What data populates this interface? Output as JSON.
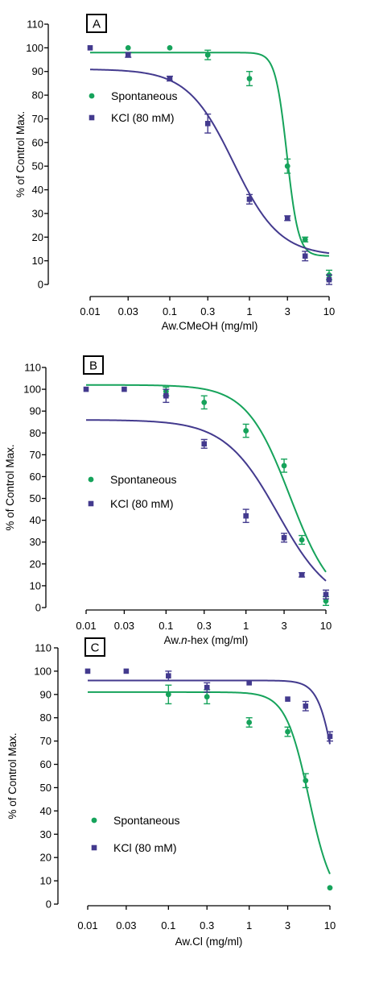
{
  "colors": {
    "spontaneous": "#16a35b",
    "kcl": "#433a8e",
    "axis": "#000000"
  },
  "chart_data": [
    {
      "type": "scatter",
      "panel_label": "A",
      "xlabel": "Aw.CMeOH (mg/ml)",
      "ylabel": "% of Control Max.",
      "xscale": "log",
      "xlim": [
        0.01,
        10
      ],
      "ylim": [
        0,
        110
      ],
      "x_ticks": [
        0.01,
        0.03,
        0.1,
        0.3,
        1,
        3,
        10
      ],
      "x_tick_labels": [
        "0.01",
        "0.03",
        "0.1",
        "0.3",
        "1",
        "3",
        "10"
      ],
      "y_ticks": [
        0,
        10,
        20,
        30,
        40,
        50,
        60,
        70,
        80,
        90,
        100,
        110
      ],
      "y_tick_labels": [
        "0",
        "10",
        "20",
        "30",
        "40",
        "50",
        "60",
        "70",
        "80",
        "90",
        "100",
        "110"
      ],
      "legend_position": "center-left",
      "series": [
        {
          "name": "Spontaneous",
          "marker": "circle",
          "color_key": "spontaneous",
          "points": [
            {
              "x": 0.03,
              "y": 100,
              "err": 0
            },
            {
              "x": 0.1,
              "y": 100,
              "err": 0
            },
            {
              "x": 0.3,
              "y": 97,
              "err": 2
            },
            {
              "x": 1,
              "y": 87,
              "err": 3
            },
            {
              "x": 3,
              "y": 50,
              "err": 3
            },
            {
              "x": 5,
              "y": 19,
              "err": 1
            },
            {
              "x": 10,
              "y": 4,
              "err": 2
            }
          ],
          "fit": {
            "top": 98,
            "bottom": 12,
            "log_ec50": 0.47,
            "hill": 6
          }
        },
        {
          "name": "KCl (80 mM)",
          "marker": "square",
          "color_key": "kcl",
          "points": [
            {
              "x": 0.01,
              "y": 100,
              "err": 0
            },
            {
              "x": 0.03,
              "y": 97,
              "err": 1
            },
            {
              "x": 0.1,
              "y": 87,
              "err": 1
            },
            {
              "x": 0.3,
              "y": 68,
              "err": 4
            },
            {
              "x": 1,
              "y": 36,
              "err": 2
            },
            {
              "x": 3,
              "y": 28,
              "err": 1
            },
            {
              "x": 5,
              "y": 12,
              "err": 2
            },
            {
              "x": 10,
              "y": 2,
              "err": 2
            }
          ],
          "fit": {
            "top": 91,
            "bottom": 12,
            "log_ec50": -0.2,
            "hill": 1.5
          }
        }
      ]
    },
    {
      "type": "scatter",
      "panel_label": "B",
      "xlabel_prefix": "Aw.",
      "xlabel_italic": "n",
      "xlabel_suffix": "-hex (mg/ml)",
      "ylabel": "% of Control Max.",
      "xscale": "log",
      "xlim": [
        0.01,
        10
      ],
      "ylim": [
        0,
        110
      ],
      "x_ticks": [
        0.01,
        0.03,
        0.1,
        0.3,
        1,
        3,
        10
      ],
      "x_tick_labels": [
        "0.01",
        "0.03",
        "0.1",
        "0.3",
        "1",
        "3",
        "10"
      ],
      "y_ticks": [
        0,
        10,
        20,
        30,
        40,
        50,
        60,
        70,
        80,
        90,
        100,
        110
      ],
      "y_tick_labels": [
        "0",
        "10",
        "20",
        "30",
        "40",
        "50",
        "60",
        "70",
        "80",
        "90",
        "100",
        "110"
      ],
      "legend_position": "center-left",
      "series": [
        {
          "name": "Spontaneous",
          "marker": "circle",
          "color_key": "spontaneous",
          "points": [
            {
              "x": 0.1,
              "y": 99,
              "err": 2
            },
            {
              "x": 0.3,
              "y": 94,
              "err": 3
            },
            {
              "x": 1,
              "y": 81,
              "err": 3
            },
            {
              "x": 3,
              "y": 65,
              "err": 3
            },
            {
              "x": 5,
              "y": 31,
              "err": 2
            },
            {
              "x": 10,
              "y": 3,
              "err": 2
            }
          ],
          "fit": {
            "top": 102,
            "bottom": 0,
            "log_ec50": 0.55,
            "hill": 1.6
          }
        },
        {
          "name": "KCl (80 mM)",
          "marker": "square",
          "color_key": "kcl",
          "points": [
            {
              "x": 0.01,
              "y": 100,
              "err": 0
            },
            {
              "x": 0.03,
              "y": 100,
              "err": 0
            },
            {
              "x": 0.1,
              "y": 97,
              "err": 3
            },
            {
              "x": 0.3,
              "y": 75,
              "err": 2
            },
            {
              "x": 1,
              "y": 42,
              "err": 3
            },
            {
              "x": 3,
              "y": 32,
              "err": 2
            },
            {
              "x": 5,
              "y": 15,
              "err": 1
            },
            {
              "x": 10,
              "y": 6,
              "err": 2
            }
          ],
          "fit": {
            "top": 86,
            "bottom": 0,
            "log_ec50": 0.4,
            "hill": 1.3
          }
        }
      ]
    },
    {
      "type": "scatter",
      "panel_label": "C",
      "xlabel": "Aw.Cl (mg/ml)",
      "ylabel": "% of Control Max.",
      "xscale": "log",
      "xlim": [
        0.01,
        10
      ],
      "ylim": [
        0,
        110
      ],
      "x_ticks": [
        0.01,
        0.03,
        0.1,
        0.3,
        1,
        3,
        10
      ],
      "x_tick_labels": [
        "0.01",
        "0.03",
        "0.1",
        "0.3",
        "1",
        "3",
        "10"
      ],
      "y_ticks": [
        0,
        10,
        20,
        30,
        40,
        50,
        60,
        70,
        80,
        90,
        100,
        110
      ],
      "y_tick_labels": [
        "0",
        "10",
        "20",
        "30",
        "40",
        "50",
        "60",
        "70",
        "80",
        "90",
        "100",
        "110"
      ],
      "legend_position": "center-left",
      "series": [
        {
          "name": "Spontaneous",
          "marker": "circle",
          "color_key": "spontaneous",
          "points": [
            {
              "x": 0.1,
              "y": 90,
              "err": 4
            },
            {
              "x": 0.3,
              "y": 89,
              "err": 3
            },
            {
              "x": 1,
              "y": 78,
              "err": 2
            },
            {
              "x": 3,
              "y": 74,
              "err": 2
            },
            {
              "x": 5,
              "y": 53,
              "err": 3
            },
            {
              "x": 10,
              "y": 7,
              "err": 0
            }
          ],
          "fit": {
            "top": 91,
            "bottom": 0,
            "log_ec50": 0.74,
            "hill": 3
          }
        },
        {
          "name": "KCl (80 mM)",
          "marker": "square",
          "color_key": "kcl",
          "points": [
            {
              "x": 0.01,
              "y": 100,
              "err": 0
            },
            {
              "x": 0.03,
              "y": 100,
              "err": 0
            },
            {
              "x": 0.1,
              "y": 98,
              "err": 2
            },
            {
              "x": 0.3,
              "y": 93,
              "err": 2
            },
            {
              "x": 1,
              "y": 95,
              "err": 0
            },
            {
              "x": 3,
              "y": 88,
              "err": 0
            },
            {
              "x": 5,
              "y": 85,
              "err": 2
            },
            {
              "x": 10,
              "y": 72,
              "err": 2
            }
          ],
          "fit": {
            "top": 96,
            "bottom": 0,
            "log_ec50": 1.1,
            "hill": 4
          }
        }
      ]
    }
  ]
}
